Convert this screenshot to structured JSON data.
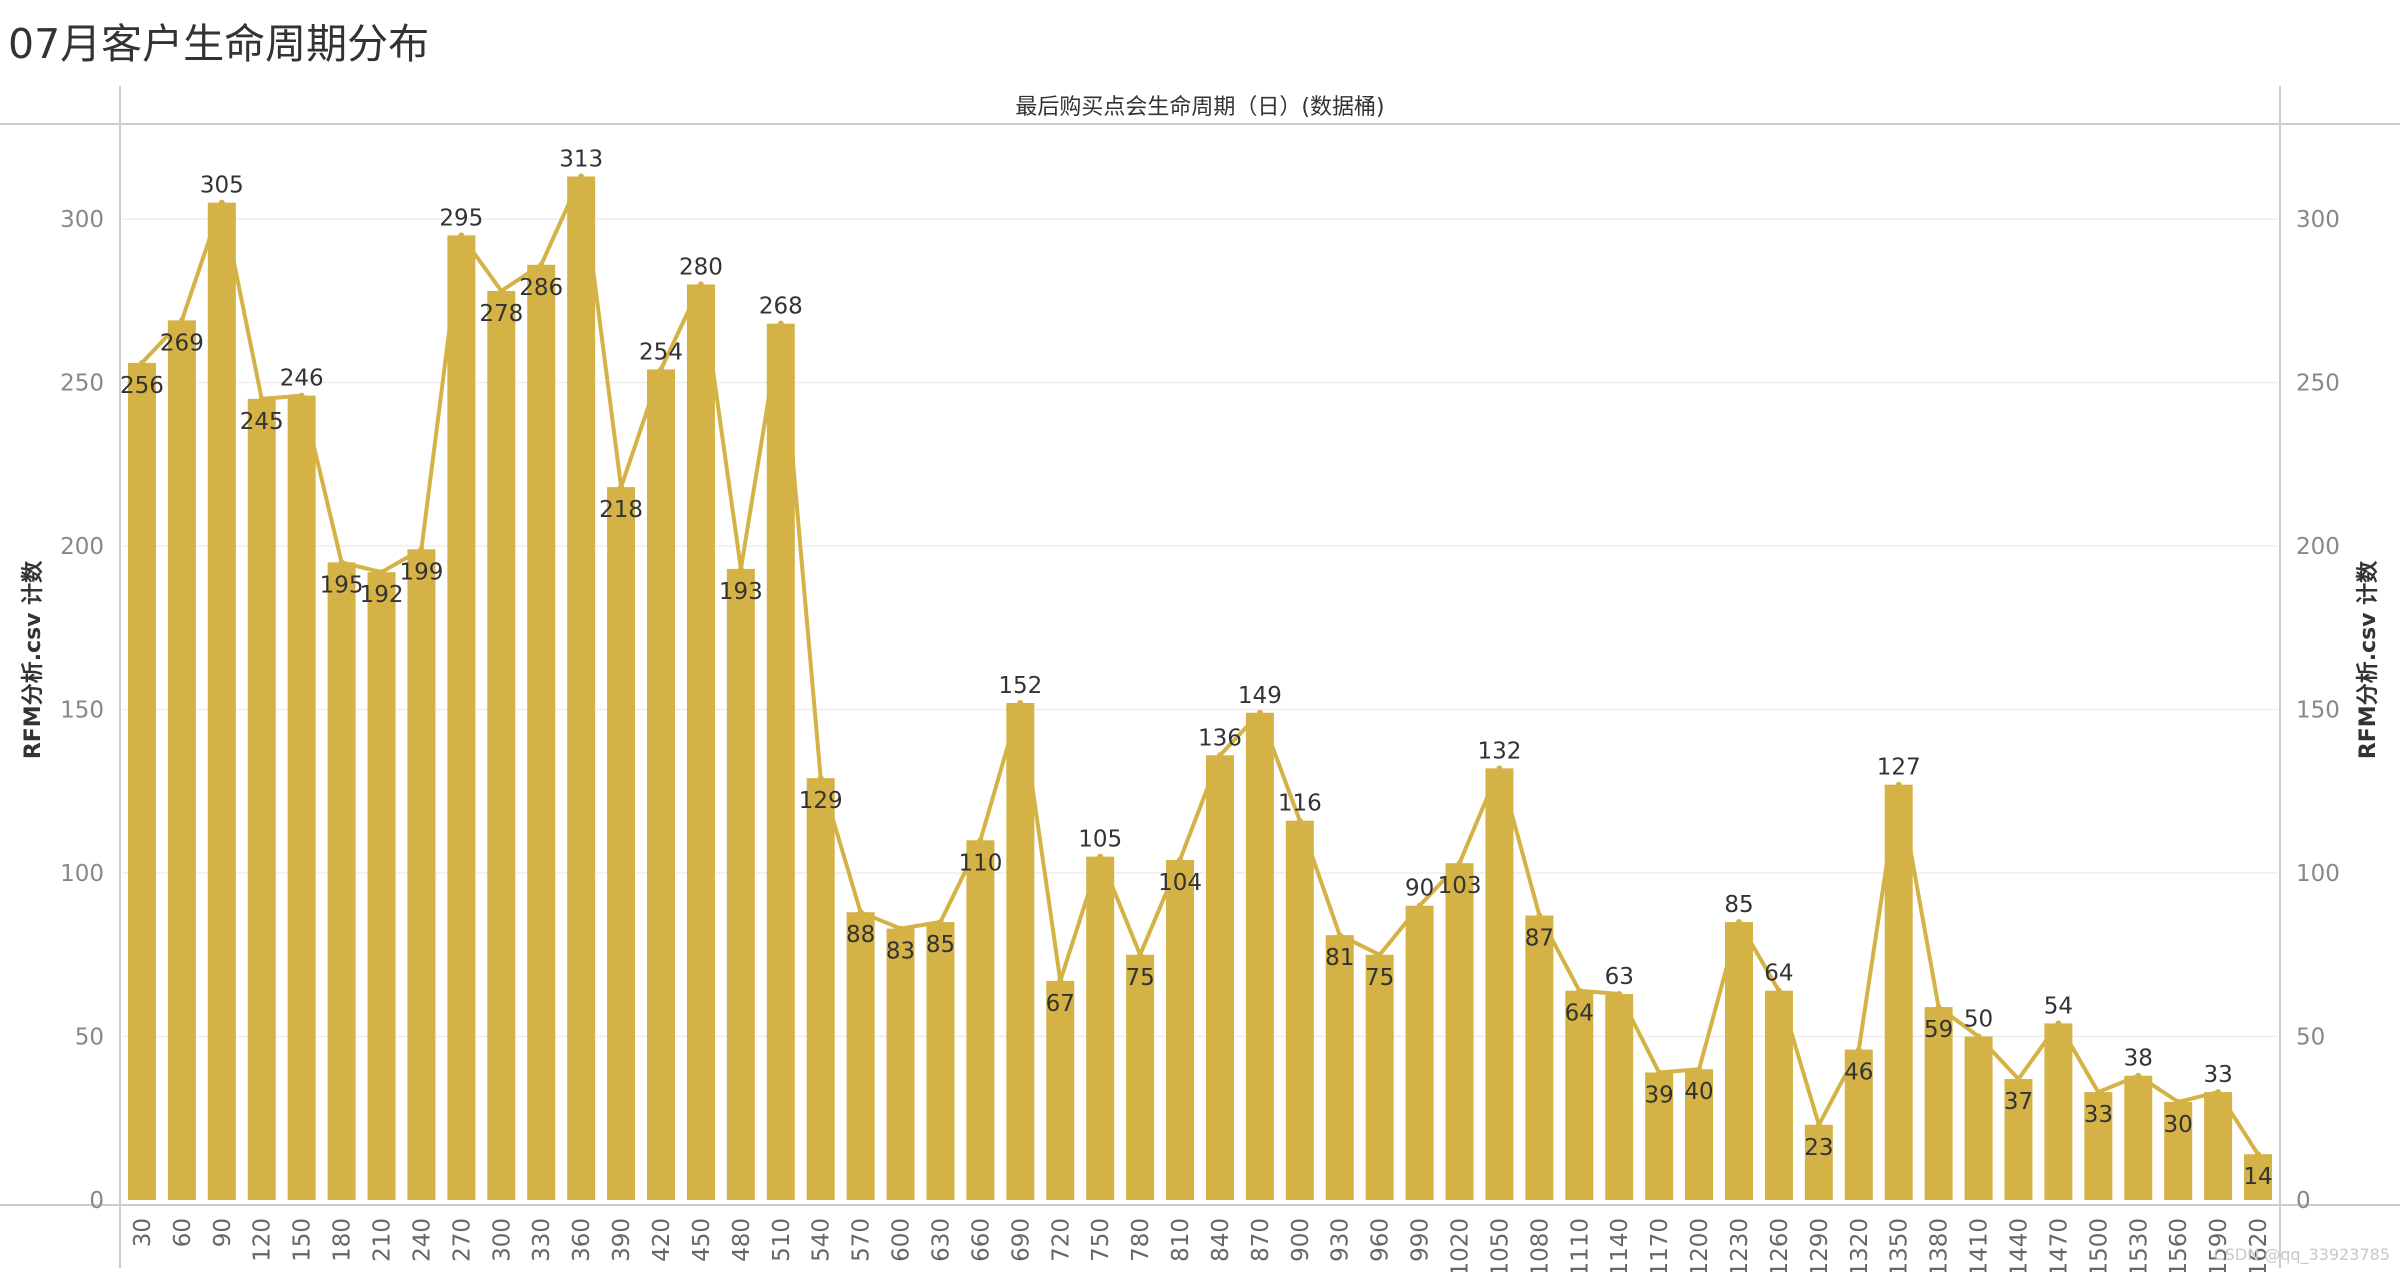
{
  "title": "07月客户生命周期分布",
  "watermark": "CSDN @qq_33923785",
  "chart_data": {
    "type": "bar",
    "overlay": "line",
    "title": "07月客户生命周期分布",
    "column_header": "最后购买点会生命周期（日）(数据桶)",
    "ylabel_left": "RFM分析.csv 计数",
    "ylabel_right": "RFM分析.csv 计数",
    "ylim": [
      0,
      330
    ],
    "yticks": [
      0,
      50,
      100,
      150,
      200,
      250,
      300
    ],
    "grid": true,
    "bar_color": "#D4B245",
    "line_color": "#D4B245",
    "categories": [
      "30",
      "60",
      "90",
      "120",
      "150",
      "180",
      "210",
      "240",
      "270",
      "300",
      "330",
      "360",
      "390",
      "420",
      "450",
      "480",
      "510",
      "540",
      "570",
      "600",
      "630",
      "660",
      "690",
      "720",
      "750",
      "780",
      "810",
      "840",
      "870",
      "900",
      "930",
      "960",
      "990",
      "1020",
      "1050",
      "1080",
      "1110",
      "1140",
      "1170",
      "1200",
      "1230",
      "1260",
      "1290",
      "1320",
      "1350",
      "1380",
      "1410",
      "1440",
      "1470",
      "1500",
      "1530",
      "1560",
      "1590",
      "1620"
    ],
    "values": [
      256,
      269,
      305,
      245,
      246,
      195,
      192,
      199,
      295,
      278,
      286,
      313,
      218,
      254,
      280,
      193,
      268,
      129,
      88,
      83,
      85,
      110,
      152,
      67,
      105,
      75,
      104,
      136,
      149,
      116,
      81,
      75,
      90,
      103,
      132,
      87,
      64,
      63,
      39,
      40,
      85,
      64,
      23,
      46,
      127,
      59,
      50,
      37,
      54,
      33,
      38,
      30,
      33,
      14
    ],
    "label_positions": [
      "below",
      "below",
      "above",
      "below",
      "above",
      "below",
      "below",
      "below",
      "above",
      "below",
      "below",
      "above",
      "below",
      "above",
      "above",
      "below",
      "above",
      "below",
      "below",
      "below",
      "below",
      "below",
      "above",
      "below",
      "above",
      "below",
      "below",
      "above",
      "above",
      "above",
      "below",
      "below",
      "above",
      "below",
      "above",
      "below",
      "below",
      "above",
      "below",
      "below",
      "above",
      "above",
      "below",
      "below",
      "above",
      "below",
      "above",
      "below",
      "above",
      "below",
      "above",
      "below",
      "above",
      "below"
    ]
  }
}
